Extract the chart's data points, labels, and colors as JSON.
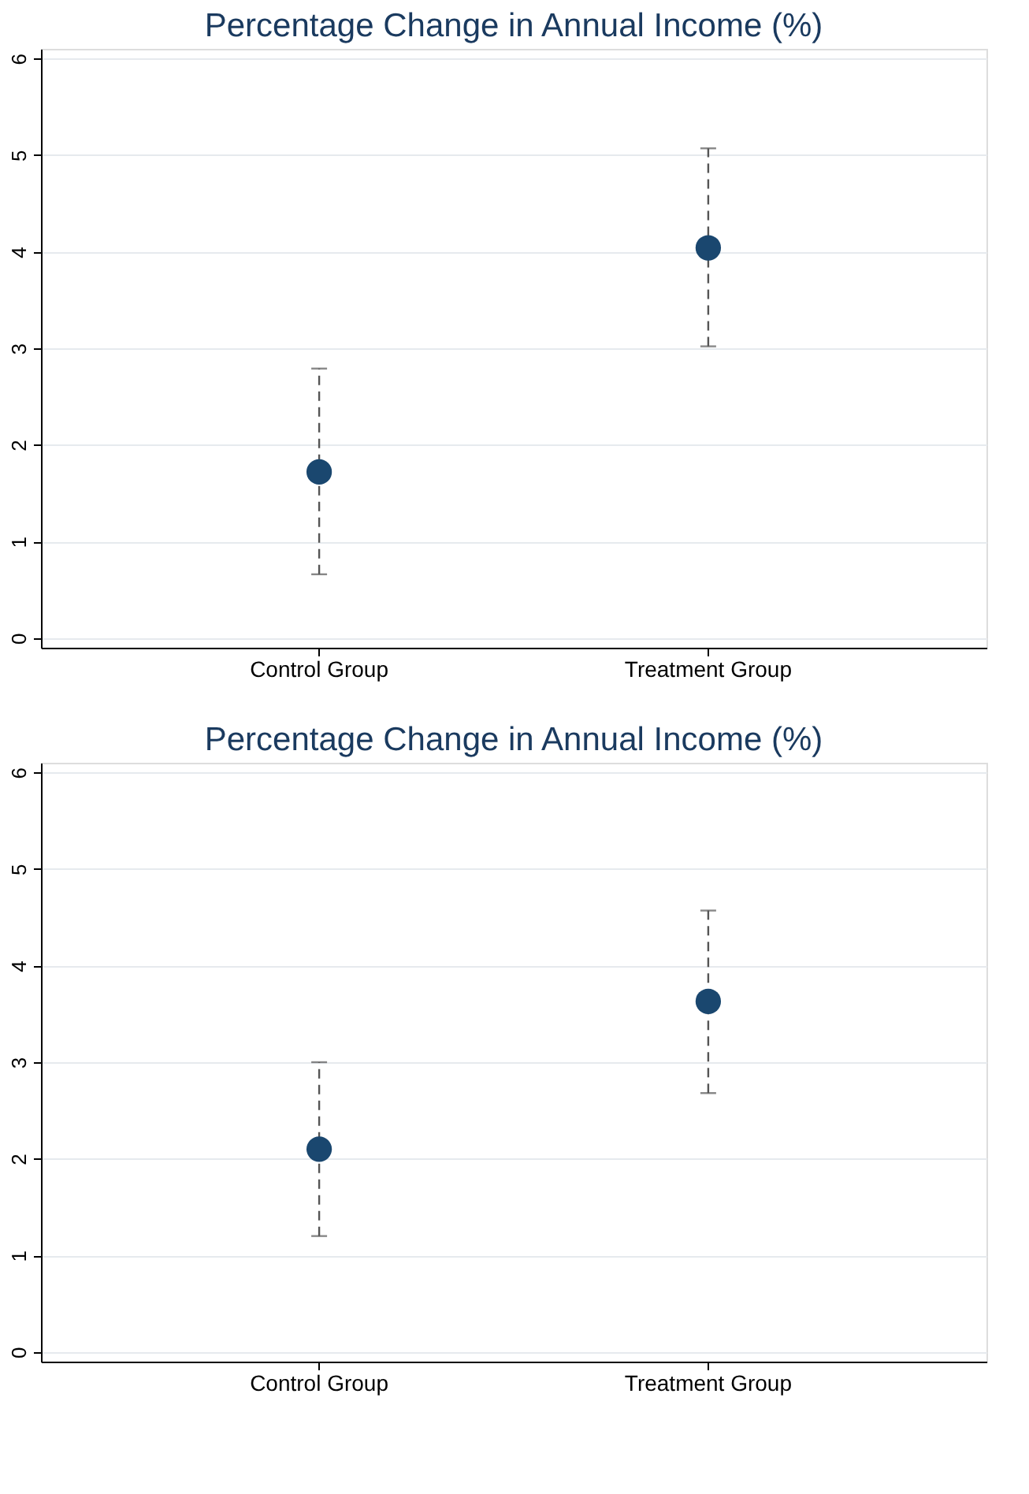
{
  "chart_data": [
    {
      "type": "scatter",
      "title": "Percentage Change in Annual Income (%)",
      "categories": [
        "Control Group",
        "Treatment Group"
      ],
      "values": [
        1.72,
        4.04
      ],
      "errors": [
        [
          0.66,
          2.79
        ],
        [
          3.02,
          5.07
        ]
      ],
      "color": "#1a476f",
      "marker": "circle",
      "ylim": [
        -0.1,
        6.1
      ],
      "yticks": [
        0,
        1,
        2,
        3,
        4,
        5,
        6
      ],
      "grid": "y"
    },
    {
      "type": "scatter",
      "title": "Percentage Change in Annual Income (%)",
      "categories": [
        "Control Group",
        "Treatment Group"
      ],
      "values": [
        2.1,
        3.63
      ],
      "errors": [
        [
          1.2,
          3.0
        ],
        [
          2.68,
          4.57
        ]
      ],
      "color": "#1a476f",
      "marker": "circle",
      "ylim": [
        -0.1,
        6.1
      ],
      "yticks": [
        0,
        1,
        2,
        3,
        4,
        5,
        6
      ],
      "grid": "y"
    }
  ]
}
